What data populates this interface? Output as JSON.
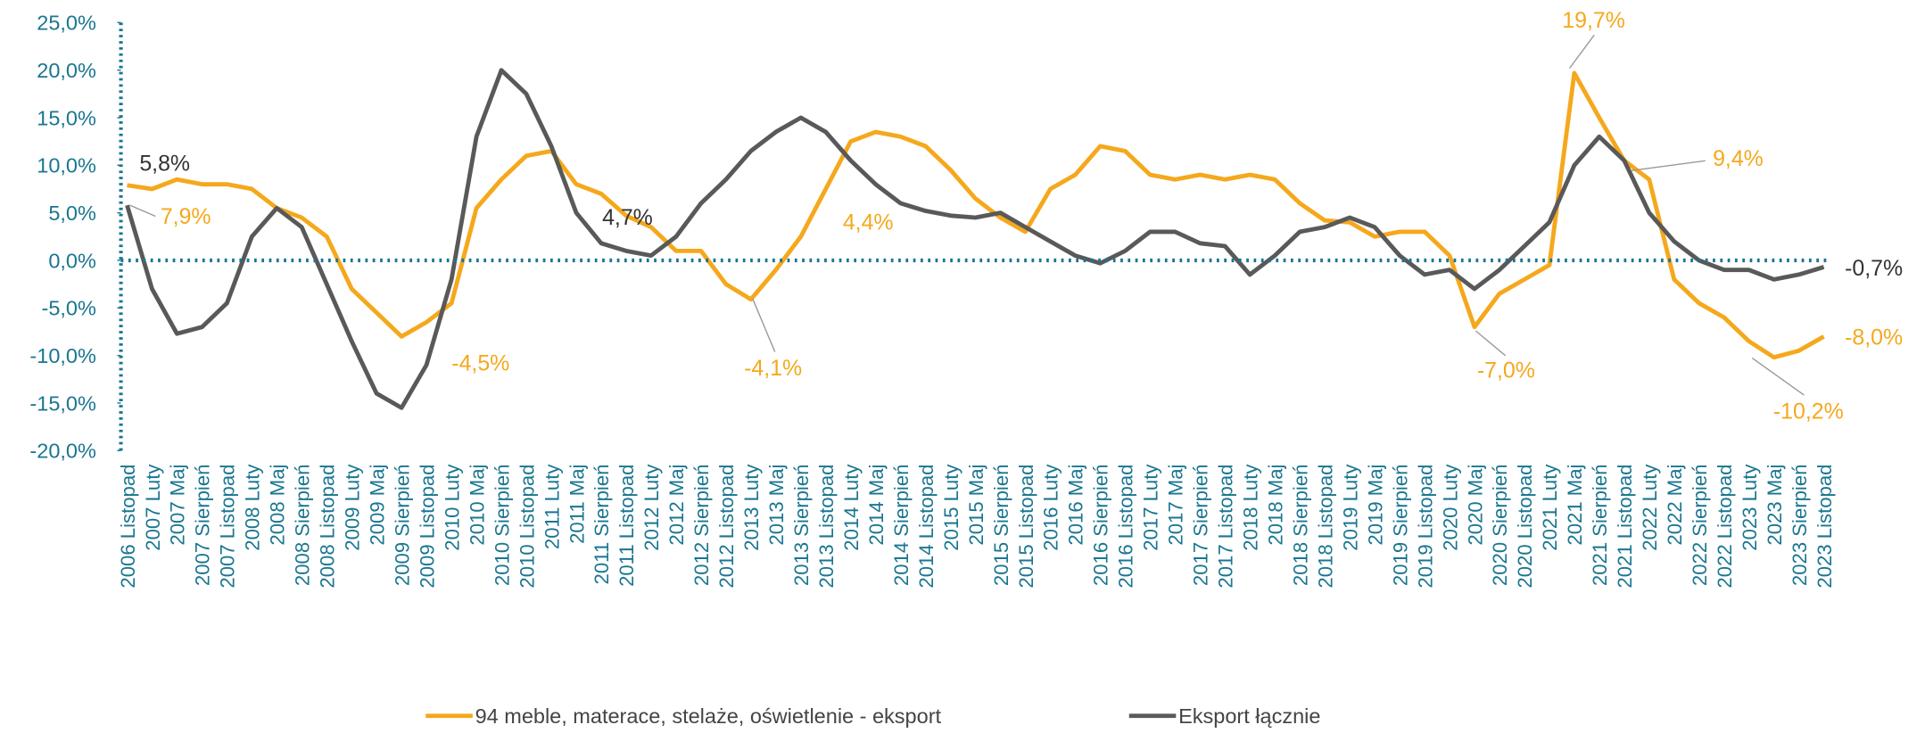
{
  "chart_data": {
    "type": "line",
    "categories": [
      "2006 Listopad",
      "2007 Luty",
      "2007 Maj",
      "2007 Sierpień",
      "2007 Listopad",
      "2008 Luty",
      "2008 Maj",
      "2008 Sierpień",
      "2008 Listopad",
      "2009 Luty",
      "2009 Maj",
      "2009 Sierpień",
      "2009 Listopad",
      "2010 Luty",
      "2010 Maj",
      "2010 Sierpień",
      "2010 Listopad",
      "2011 Luty",
      "2011 Maj",
      "2011 Sierpień",
      "2011 Listopad",
      "2012 Luty",
      "2012 Maj",
      "2012 Sierpień",
      "2012 Listopad",
      "2013 Luty",
      "2013 Maj",
      "2013 Sierpień",
      "2013 Listopad",
      "2014 Luty",
      "2014 Maj",
      "2014 Sierpień",
      "2014 Listopad",
      "2015 Luty",
      "2015 Maj",
      "2015 Sierpień",
      "2015 Listopad",
      "2016 Luty",
      "2016 Maj",
      "2016 Sierpień",
      "2016 Listopad",
      "2017 Luty",
      "2017 Maj",
      "2017 Sierpień",
      "2017 Listopad",
      "2018 Luty",
      "2018 Maj",
      "2018 Sierpień",
      "2018 Listopad",
      "2019 Luty",
      "2019 Maj",
      "2019 Sierpień",
      "2019 Listopad",
      "2020 Luty",
      "2020 Maj",
      "2020 Sierpień",
      "2020 Listopad",
      "2021 Luty",
      "2021 Maj",
      "2021 Sierpień",
      "2021 Listopad",
      "2022 Luty",
      "2022 Maj",
      "2022 Sierpień",
      "2022 Listopad",
      "2023 Luty",
      "2023 Maj",
      "2023 Sierpień",
      "2023 Listopad"
    ],
    "series": [
      {
        "name": "94 meble, materace, stelaże, oświetlenie - eksport",
        "color": "#f5a81c",
        "values": [
          7.9,
          7.5,
          8.5,
          8.0,
          8.0,
          7.5,
          5.5,
          4.5,
          2.5,
          -3.0,
          -5.5,
          -8.0,
          -6.5,
          -4.5,
          5.5,
          8.5,
          11.0,
          11.5,
          8.0,
          7.0,
          4.7,
          3.5,
          1.0,
          1.0,
          -2.5,
          -4.1,
          -1.0,
          2.5,
          7.5,
          12.5,
          13.5,
          13.0,
          12.0,
          9.5,
          6.5,
          4.5,
          3.0,
          7.5,
          9.0,
          12.0,
          11.5,
          9.0,
          8.5,
          9.0,
          8.5,
          9.0,
          8.5,
          6.0,
          4.2,
          4.0,
          2.5,
          3.0,
          3.0,
          0.5,
          -7.0,
          -3.5,
          -2.0,
          -0.5,
          19.7,
          15.0,
          10.5,
          8.5,
          -2.0,
          -4.5,
          -6.0,
          -8.5,
          -10.2,
          -9.5,
          -8.0
        ]
      },
      {
        "name": "Eksport łącznie",
        "color": "#595959",
        "values": [
          5.8,
          -3.0,
          -7.7,
          -7.0,
          -4.5,
          2.5,
          5.5,
          3.5,
          -2.5,
          -8.5,
          -14.0,
          -15.5,
          -11.0,
          -2.0,
          13.0,
          20.0,
          17.5,
          12.0,
          5.0,
          1.8,
          1.0,
          0.5,
          2.5,
          6.0,
          8.5,
          11.5,
          13.5,
          15.0,
          13.5,
          10.5,
          8.0,
          6.0,
          5.2,
          4.7,
          4.5,
          5.0,
          3.5,
          2.0,
          0.5,
          -0.3,
          1.0,
          3.0,
          3.0,
          1.8,
          1.5,
          -1.5,
          0.5,
          3.0,
          3.5,
          4.5,
          3.5,
          0.5,
          -1.5,
          -1.0,
          -3.0,
          -1.0,
          1.5,
          4.0,
          10.0,
          13.0,
          10.5,
          5.0,
          2.0,
          0.0,
          -1.0,
          -1.0,
          -2.0,
          -1.5,
          -0.7
        ]
      }
    ],
    "annotations": [
      "5,8%",
      "7,9%",
      "-4,5%",
      "4,7%",
      "-4,1%",
      "4,4%",
      "-7,0%",
      "19,7%",
      "9,4%",
      "-0,7%",
      "-8,0%",
      "-10,2%"
    ],
    "ylim": [
      -20,
      25
    ],
    "yticks": [
      {
        "value": 25,
        "label": "25,0%"
      },
      {
        "value": 20,
        "label": "20,0%"
      },
      {
        "value": 15,
        "label": "15,0%"
      },
      {
        "value": 10,
        "label": "10,0%"
      },
      {
        "value": 5,
        "label": "5,0%"
      },
      {
        "value": 0,
        "label": "0,0%"
      },
      {
        "value": -5,
        "label": "-5,0%"
      },
      {
        "value": -10,
        "label": "-10,0%"
      },
      {
        "value": -15,
        "label": "-15,0%"
      },
      {
        "value": -20,
        "label": "-20,0%"
      }
    ],
    "legend": "bottom"
  }
}
